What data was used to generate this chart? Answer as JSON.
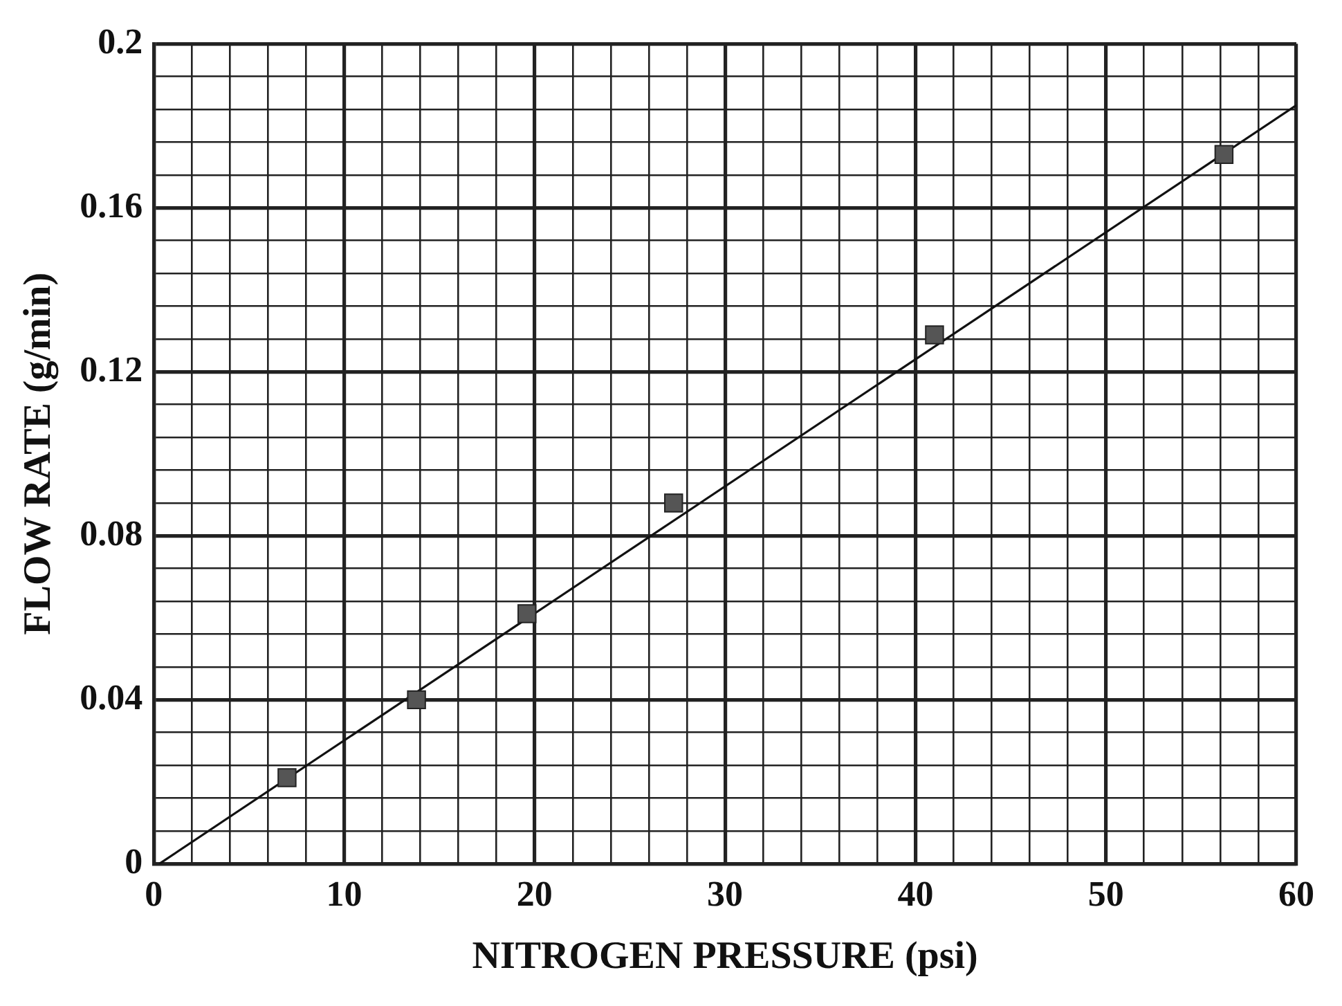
{
  "chart_data": {
    "type": "scatter",
    "xlabel": "NITROGEN PRESSURE (psi)",
    "ylabel": "FLOW RATE (g/min)",
    "xlim": [
      0,
      60
    ],
    "ylim": [
      0,
      0.2
    ],
    "xticks": [
      0,
      {
        "value": 2,
        "label": null
      },
      {
        "value": 4,
        "label": null
      },
      {
        "value": 6,
        "label": null
      },
      {
        "value": 8,
        "label": null
      },
      10,
      {
        "value": 12,
        "label": null
      },
      {
        "value": 14,
        "label": null
      },
      {
        "value": 16,
        "label": null
      },
      {
        "value": 18,
        "label": null
      },
      20,
      {
        "value": 22,
        "label": null
      },
      {
        "value": 24,
        "label": null
      },
      {
        "value": 26,
        "label": null
      },
      {
        "value": 28,
        "label": null
      },
      30,
      {
        "value": 32,
        "label": null
      },
      {
        "value": 34,
        "label": null
      },
      {
        "value": 36,
        "label": null
      },
      {
        "value": 38,
        "label": null
      },
      40,
      {
        "value": 42,
        "label": null
      },
      {
        "value": 44,
        "label": null
      },
      {
        "value": 46,
        "label": null
      },
      {
        "value": 48,
        "label": null
      },
      50,
      {
        "value": 52,
        "label": null
      },
      {
        "value": 54,
        "label": null
      },
      {
        "value": 56,
        "label": null
      },
      {
        "value": 58,
        "label": null
      },
      60
    ],
    "yticks": [
      0,
      {
        "value": 0.008,
        "label": null
      },
      {
        "value": 0.016,
        "label": null
      },
      {
        "value": 0.024,
        "label": null
      },
      {
        "value": 0.032,
        "label": null
      },
      0.04,
      {
        "value": 0.048,
        "label": null
      },
      {
        "value": 0.056,
        "label": null
      },
      {
        "value": 0.064,
        "label": null
      },
      {
        "value": 0.072,
        "label": null
      },
      0.08,
      {
        "value": 0.088,
        "label": null
      },
      {
        "value": 0.096,
        "label": null
      },
      {
        "value": 0.104,
        "label": null
      },
      {
        "value": 0.112,
        "label": null
      },
      0.12,
      {
        "value": 0.128,
        "label": null
      },
      {
        "value": 0.136,
        "label": null
      },
      {
        "value": 0.144,
        "label": null
      },
      {
        "value": 0.152,
        "label": null
      },
      0.16,
      {
        "value": 0.168,
        "label": null
      },
      {
        "value": 0.176,
        "label": null
      },
      {
        "value": 0.184,
        "label": null
      },
      {
        "value": 0.192,
        "label": null
      },
      0.2
    ],
    "grid": true,
    "marker": "square",
    "series": [
      {
        "color": "#555555",
        "x": [
          7.0,
          13.8,
          19.6,
          27.3,
          41.0,
          56.2
        ],
        "values": [
          0.021,
          0.04,
          0.061,
          0.088,
          0.129,
          0.173
        ]
      },
      {
        "type": "line",
        "color": "#111111",
        "marker": "none",
        "x": [
          0.3,
          60
        ],
        "values": [
          0,
          0.185
        ]
      }
    ]
  }
}
